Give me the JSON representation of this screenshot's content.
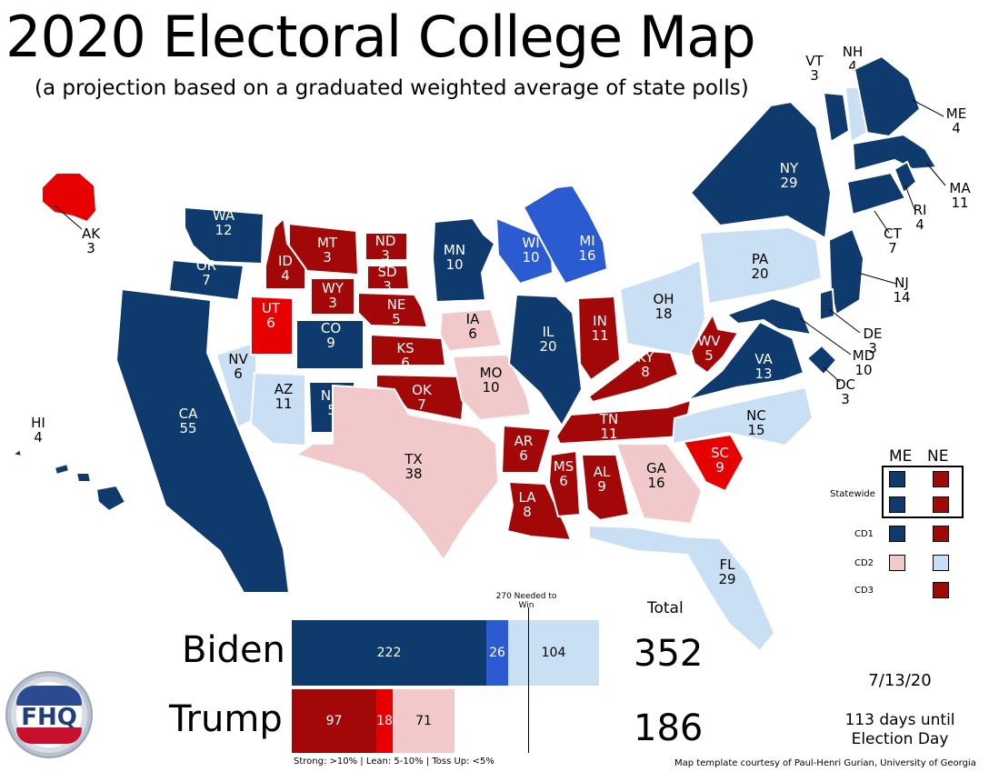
{
  "title": "2020 Electoral College Map",
  "subtitle": "(a projection based on a graduated weighted average of state polls)",
  "colors": {
    "strong_dem": "#0e3a6e",
    "lean_dem": "#2b5bd1",
    "tossup_dem": "#c9dff3",
    "tossup_rep": "#f2c9cb",
    "lean_rep": "#e60000",
    "strong_rep": "#a30808"
  },
  "states": [
    {
      "abbr": "WA",
      "ev": "12",
      "rating": "strong_dem"
    },
    {
      "abbr": "OR",
      "ev": "7",
      "rating": "strong_dem"
    },
    {
      "abbr": "CA",
      "ev": "55",
      "rating": "strong_dem"
    },
    {
      "abbr": "NV",
      "ev": "6",
      "rating": "tossup_dem"
    },
    {
      "abbr": "ID",
      "ev": "4",
      "rating": "strong_rep"
    },
    {
      "abbr": "MT",
      "ev": "3",
      "rating": "strong_rep"
    },
    {
      "abbr": "WY",
      "ev": "3",
      "rating": "strong_rep"
    },
    {
      "abbr": "UT",
      "ev": "6",
      "rating": "lean_rep"
    },
    {
      "abbr": "AZ",
      "ev": "11",
      "rating": "tossup_dem"
    },
    {
      "abbr": "CO",
      "ev": "9",
      "rating": "strong_dem"
    },
    {
      "abbr": "NM",
      "ev": "5",
      "rating": "strong_dem"
    },
    {
      "abbr": "ND",
      "ev": "3",
      "rating": "strong_rep"
    },
    {
      "abbr": "SD",
      "ev": "3",
      "rating": "strong_rep"
    },
    {
      "abbr": "NE",
      "ev": "5",
      "rating": "strong_rep"
    },
    {
      "abbr": "KS",
      "ev": "6",
      "rating": "strong_rep"
    },
    {
      "abbr": "OK",
      "ev": "7",
      "rating": "strong_rep"
    },
    {
      "abbr": "TX",
      "ev": "38",
      "rating": "tossup_rep"
    },
    {
      "abbr": "MN",
      "ev": "10",
      "rating": "strong_dem"
    },
    {
      "abbr": "IA",
      "ev": "6",
      "rating": "tossup_rep"
    },
    {
      "abbr": "MO",
      "ev": "10",
      "rating": "tossup_rep"
    },
    {
      "abbr": "AR",
      "ev": "6",
      "rating": "strong_rep"
    },
    {
      "abbr": "LA",
      "ev": "8",
      "rating": "strong_rep"
    },
    {
      "abbr": "WI",
      "ev": "10",
      "rating": "lean_dem"
    },
    {
      "abbr": "MI",
      "ev": "16",
      "rating": "lean_dem"
    },
    {
      "abbr": "IL",
      "ev": "20",
      "rating": "strong_dem"
    },
    {
      "abbr": "IN",
      "ev": "11",
      "rating": "strong_rep"
    },
    {
      "abbr": "OH",
      "ev": "18",
      "rating": "tossup_dem"
    },
    {
      "abbr": "KY",
      "ev": "8",
      "rating": "strong_rep"
    },
    {
      "abbr": "TN",
      "ev": "11",
      "rating": "strong_rep"
    },
    {
      "abbr": "MS",
      "ev": "6",
      "rating": "strong_rep"
    },
    {
      "abbr": "AL",
      "ev": "9",
      "rating": "strong_rep"
    },
    {
      "abbr": "GA",
      "ev": "16",
      "rating": "tossup_rep"
    },
    {
      "abbr": "FL",
      "ev": "29",
      "rating": "tossup_dem"
    },
    {
      "abbr": "SC",
      "ev": "9",
      "rating": "lean_rep"
    },
    {
      "abbr": "NC",
      "ev": "15",
      "rating": "tossup_dem"
    },
    {
      "abbr": "VA",
      "ev": "13",
      "rating": "strong_dem"
    },
    {
      "abbr": "WV",
      "ev": "5",
      "rating": "strong_rep"
    },
    {
      "abbr": "PA",
      "ev": "20",
      "rating": "tossup_dem"
    },
    {
      "abbr": "NY",
      "ev": "29",
      "rating": "strong_dem"
    },
    {
      "abbr": "VT",
      "ev": "3",
      "rating": "strong_dem"
    },
    {
      "abbr": "NH",
      "ev": "4",
      "rating": "tossup_dem"
    },
    {
      "abbr": "ME",
      "ev": "4",
      "rating": "strong_dem"
    },
    {
      "abbr": "MA",
      "ev": "11",
      "rating": "strong_dem"
    },
    {
      "abbr": "RI",
      "ev": "4",
      "rating": "strong_dem"
    },
    {
      "abbr": "CT",
      "ev": "7",
      "rating": "strong_dem"
    },
    {
      "abbr": "NJ",
      "ev": "14",
      "rating": "strong_dem"
    },
    {
      "abbr": "DE",
      "ev": "3",
      "rating": "strong_dem"
    },
    {
      "abbr": "MD",
      "ev": "10",
      "rating": "strong_dem"
    },
    {
      "abbr": "DC",
      "ev": "3",
      "rating": "strong_dem"
    },
    {
      "abbr": "AK",
      "ev": "3",
      "rating": "lean_rep"
    },
    {
      "abbr": "HI",
      "ev": "4",
      "rating": "strong_dem"
    }
  ],
  "legend": {
    "headers": [
      "ME",
      "NE"
    ],
    "rows": [
      {
        "label": "Statewide",
        "me": "strong_dem",
        "ne": "strong_rep"
      },
      {
        "label": "",
        "me": "strong_dem",
        "ne": "strong_rep"
      },
      {
        "label": "CD1",
        "me": "strong_dem",
        "ne": "strong_rep"
      },
      {
        "label": "CD2",
        "me": "tossup_rep",
        "ne": "tossup_dem"
      },
      {
        "label": "CD3",
        "me": "",
        "ne": "strong_rep"
      }
    ]
  },
  "tally": {
    "needed_label": "270 Needed to Win",
    "total_label": "Total",
    "biden": {
      "name": "Biden",
      "strong": "222",
      "lean": "26",
      "tossup": "104",
      "total": "352"
    },
    "trump": {
      "name": "Trump",
      "strong": "97",
      "lean": "18",
      "tossup": "71",
      "total": "186"
    },
    "key_text": "Strong: >10%  |  Lean: 5-10%  |  Toss Up: <5%"
  },
  "date": "7/13/20",
  "countdown": "113 days until Election Day",
  "credit": "Map template courtesy of Paul-Henri Gurian, University of Georgia",
  "logo_text": "FHQ"
}
